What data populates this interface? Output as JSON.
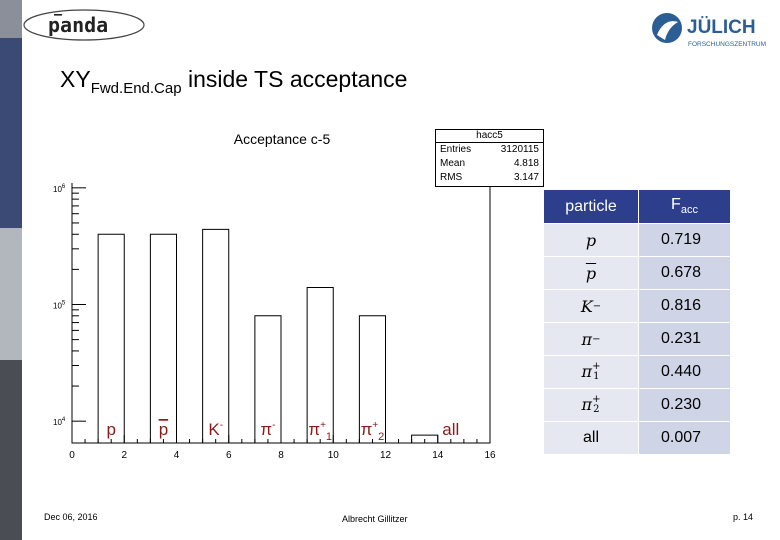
{
  "slide": {
    "title_main": "XY",
    "title_sub": "Fwd.End.Cap",
    "title_rest": " inside TS acceptance",
    "date": "Dec 06, 2016",
    "author": "Albrecht Gillitzer",
    "page": "p. 14"
  },
  "logos": {
    "panda": "panda",
    "juelich_name": "JÜLICH",
    "juelich_sub": "FORSCHUNGSZENTRUM"
  },
  "sidebar": {
    "colors": [
      "#8a8f99",
      "#3a4a74",
      "#b2b6bd",
      "#4a4d53"
    ]
  },
  "chart_data": {
    "type": "bar",
    "title": "Acceptance c-5",
    "log_y": true,
    "xlim": [
      0,
      16
    ],
    "x_ticks": [
      "0",
      "2",
      "4",
      "6",
      "8",
      "10",
      "12",
      "14",
      "16"
    ],
    "y_tick_labels": [
      {
        "base": "10",
        "exp": "4",
        "value": 10000
      },
      {
        "base": "10",
        "exp": "5",
        "value": 100000
      },
      {
        "base": "10",
        "exp": "6",
        "value": 1000000
      }
    ],
    "ylim": [
      6500,
      1100000
    ],
    "bins": [
      {
        "from": 1,
        "to": 2,
        "value": 400000
      },
      {
        "from": 3,
        "to": 4,
        "value": 400000
      },
      {
        "from": 5,
        "to": 6,
        "value": 440000
      },
      {
        "from": 7,
        "to": 8,
        "value": 80000
      },
      {
        "from": 9,
        "to": 10,
        "value": 140000
      },
      {
        "from": 11,
        "to": 12,
        "value": 80000
      },
      {
        "from": 13,
        "to": 14,
        "value": 7600
      }
    ],
    "bin_labels": [
      {
        "x": 1.5,
        "text": "p",
        "sub": "",
        "sup": ""
      },
      {
        "x": 3.5,
        "text": "p",
        "sub": "",
        "sup": "",
        "overline": true
      },
      {
        "x": 5.5,
        "text": "K",
        "sub": "",
        "sup": "-"
      },
      {
        "x": 7.5,
        "text": "π",
        "sub": "",
        "sup": "-"
      },
      {
        "x": 9.5,
        "text": "π",
        "sub": "1",
        "sup": "+"
      },
      {
        "x": 11.5,
        "text": "π",
        "sub": "2",
        "sup": "+"
      },
      {
        "x": 14.5,
        "text": "all",
        "sub": "",
        "sup": ""
      }
    ],
    "label_color": "#8b1a1a",
    "stats_box": {
      "title": "hacc5",
      "rows": [
        {
          "label": "Entries",
          "value": "3120115"
        },
        {
          "label": "Mean",
          "value": "4.818"
        },
        {
          "label": "RMS",
          "value": "3.147"
        }
      ]
    }
  },
  "table": {
    "headers": {
      "particle": "particle",
      "facc": "F",
      "facc_sub": "acc"
    },
    "rows": [
      {
        "particle": "p",
        "bar": false,
        "sup": "",
        "sub": "",
        "facc": "0.719"
      },
      {
        "particle": "p",
        "bar": true,
        "sup": "",
        "sub": "",
        "facc": "0.678"
      },
      {
        "particle": "K",
        "bar": false,
        "sup": "−",
        "sub": "",
        "facc": "0.816"
      },
      {
        "particle": "π",
        "bar": false,
        "sup": "−",
        "sub": "",
        "facc": "0.231"
      },
      {
        "particle": "π",
        "bar": false,
        "sup": "+",
        "sub": "1",
        "facc": "0.440"
      },
      {
        "particle": "π",
        "bar": false,
        "sup": "+",
        "sub": "2",
        "facc": "0.230"
      },
      {
        "particle": "all",
        "bar": false,
        "sup": "",
        "sub": "",
        "facc": "0.007"
      }
    ]
  }
}
